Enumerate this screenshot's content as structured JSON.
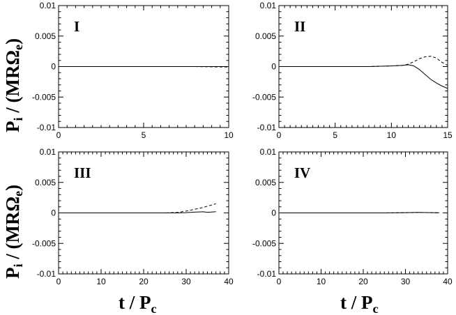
{
  "chart_data": [
    {
      "type": "line",
      "panel_label": "I",
      "xlim": [
        0,
        10
      ],
      "ylim": [
        -0.01,
        0.01
      ],
      "xticks": [
        "0",
        "5",
        "10"
      ],
      "yticks": [
        "0.01",
        "0.005",
        "0",
        "-0.005",
        "-0.01"
      ],
      "series": [
        {
          "style": "solid",
          "x": [
            0,
            2,
            4,
            6,
            8,
            9,
            10
          ],
          "y": [
            0,
            0,
            0,
            0,
            0,
            0,
            0
          ]
        },
        {
          "style": "dashed",
          "x": [
            0,
            2,
            4,
            6,
            8,
            9,
            10
          ],
          "y": [
            0,
            0,
            0,
            0,
            0,
            -5e-05,
            -8e-05
          ]
        }
      ]
    },
    {
      "type": "line",
      "panel_label": "II",
      "xlim": [
        0,
        15
      ],
      "ylim": [
        -0.01,
        0.01
      ],
      "xticks": [
        "0",
        "5",
        "10",
        "15"
      ],
      "yticks": [
        "0.01",
        "0.005",
        "0",
        "-0.005",
        "-0.01"
      ],
      "series": [
        {
          "style": "solid",
          "x": [
            0,
            4,
            8,
            10,
            11,
            11.5,
            12,
            12.5,
            13,
            13.5,
            14,
            14.5,
            15
          ],
          "y": [
            0,
            0,
            0,
            0.0001,
            0.0002,
            0.0003,
            0.0001,
            -0.0005,
            -0.0013,
            -0.0021,
            -0.0027,
            -0.0032,
            -0.0036
          ]
        },
        {
          "style": "dashed",
          "x": [
            0,
            4,
            8,
            10,
            11,
            11.5,
            12,
            12.5,
            13,
            13.5,
            14,
            14.5,
            15
          ],
          "y": [
            0,
            0,
            0,
            0.0001,
            0.0002,
            0.0004,
            0.0008,
            0.0013,
            0.0016,
            0.0017,
            0.0014,
            0.0007,
            0.0002
          ]
        }
      ]
    },
    {
      "type": "line",
      "panel_label": "III",
      "xlim": [
        0,
        40
      ],
      "ylim": [
        -0.01,
        0.01
      ],
      "xticks": [
        "0",
        "10",
        "20",
        "30",
        "40"
      ],
      "yticks": [
        "0.01",
        "0.005",
        "0",
        "-0.005",
        "-0.01"
      ],
      "series": [
        {
          "style": "solid",
          "x": [
            0,
            10,
            20,
            25,
            28,
            30,
            32,
            34,
            35,
            36,
            37
          ],
          "y": [
            0,
            0,
            0,
            0,
            0,
            5e-05,
            0.00012,
            0.00018,
            0.0001,
            0.00015,
            0.0002
          ]
        },
        {
          "style": "dashed",
          "x": [
            0,
            10,
            20,
            25,
            28,
            30,
            32,
            34,
            35,
            36,
            37
          ],
          "y": [
            0,
            0,
            0,
            0,
            8e-05,
            0.0003,
            0.0006,
            0.0009,
            0.0011,
            0.0013,
            0.0015
          ]
        }
      ]
    },
    {
      "type": "line",
      "panel_label": "IV",
      "xlim": [
        0,
        40
      ],
      "ylim": [
        -0.01,
        0.01
      ],
      "xticks": [
        "0",
        "10",
        "20",
        "30",
        "40"
      ],
      "yticks": [
        "0.01",
        "0.005",
        "0",
        "-0.005",
        "-0.01"
      ],
      "series": [
        {
          "style": "solid",
          "x": [
            0,
            10,
            20,
            25,
            30,
            33,
            36,
            38
          ],
          "y": [
            0,
            0,
            0,
            0,
            5e-05,
            8e-05,
            5e-05,
            2e-05
          ]
        },
        {
          "style": "dashed",
          "x": [
            0,
            10,
            20,
            25,
            30,
            33,
            36,
            38
          ],
          "y": [
            0,
            0,
            0,
            0,
            3e-05,
            6e-05,
            4e-05,
            1e-05
          ]
        }
      ]
    }
  ],
  "axis_titles": {
    "y_main": "P",
    "y_sub": "i",
    "y_rest": " / (MRΩ",
    "y_sub2": "e",
    "y_close": ")",
    "x_main": "t / P",
    "x_sub": "c"
  }
}
